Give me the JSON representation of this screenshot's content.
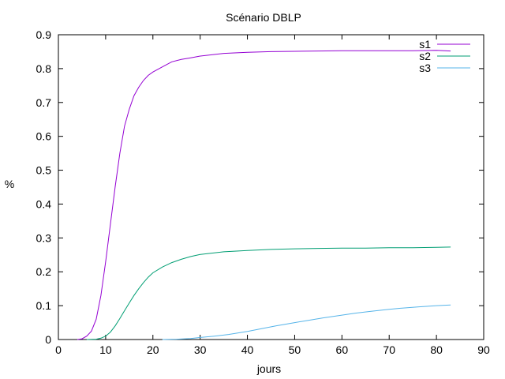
{
  "chart_data": {
    "type": "line",
    "title": "Scénario DBLP",
    "xlabel": "jours",
    "ylabel": "%",
    "xlim": [
      0,
      90
    ],
    "ylim": [
      0,
      0.9
    ],
    "xticks": [
      0,
      10,
      20,
      30,
      40,
      50,
      60,
      70,
      80,
      90
    ],
    "yticks": [
      0,
      0.1,
      0.2,
      0.3,
      0.4,
      0.5,
      0.6,
      0.7,
      0.8,
      0.9
    ],
    "grid": false,
    "legend_position": "top-right",
    "series": [
      {
        "name": "s1",
        "color": "#9400d3",
        "x": [
          4,
          5,
          6,
          7,
          8,
          9,
          10,
          11,
          12,
          13,
          14,
          15,
          16,
          17,
          18,
          19,
          20,
          22,
          24,
          26,
          28,
          30,
          35,
          40,
          45,
          50,
          55,
          60,
          65,
          70,
          75,
          80,
          83
        ],
        "y": [
          0,
          0.002,
          0.01,
          0.025,
          0.06,
          0.13,
          0.23,
          0.34,
          0.45,
          0.55,
          0.63,
          0.68,
          0.72,
          0.745,
          0.765,
          0.78,
          0.79,
          0.805,
          0.82,
          0.827,
          0.832,
          0.837,
          0.845,
          0.848,
          0.85,
          0.851,
          0.852,
          0.853,
          0.853,
          0.853,
          0.853,
          0.854,
          0.852
        ]
      },
      {
        "name": "s2",
        "color": "#009e73",
        "x": [
          6,
          8,
          9,
          10,
          11,
          12,
          13,
          14,
          15,
          16,
          17,
          18,
          19,
          20,
          22,
          24,
          26,
          28,
          30,
          35,
          40,
          45,
          50,
          55,
          60,
          65,
          70,
          75,
          80,
          83
        ],
        "y": [
          0,
          0.001,
          0.004,
          0.01,
          0.022,
          0.04,
          0.062,
          0.085,
          0.108,
          0.13,
          0.15,
          0.168,
          0.184,
          0.197,
          0.214,
          0.227,
          0.237,
          0.245,
          0.251,
          0.259,
          0.263,
          0.266,
          0.268,
          0.269,
          0.27,
          0.27,
          0.271,
          0.271,
          0.272,
          0.273
        ]
      },
      {
        "name": "s3",
        "color": "#56b4e9",
        "x": [
          22,
          25,
          28,
          30,
          33,
          36,
          40,
          43,
          46,
          50,
          53,
          56,
          60,
          63,
          66,
          70,
          73,
          76,
          80,
          83
        ],
        "y": [
          0,
          0.001,
          0.003,
          0.006,
          0.01,
          0.015,
          0.024,
          0.032,
          0.04,
          0.05,
          0.057,
          0.064,
          0.072,
          0.078,
          0.083,
          0.089,
          0.093,
          0.096,
          0.1,
          0.102
        ]
      }
    ]
  }
}
